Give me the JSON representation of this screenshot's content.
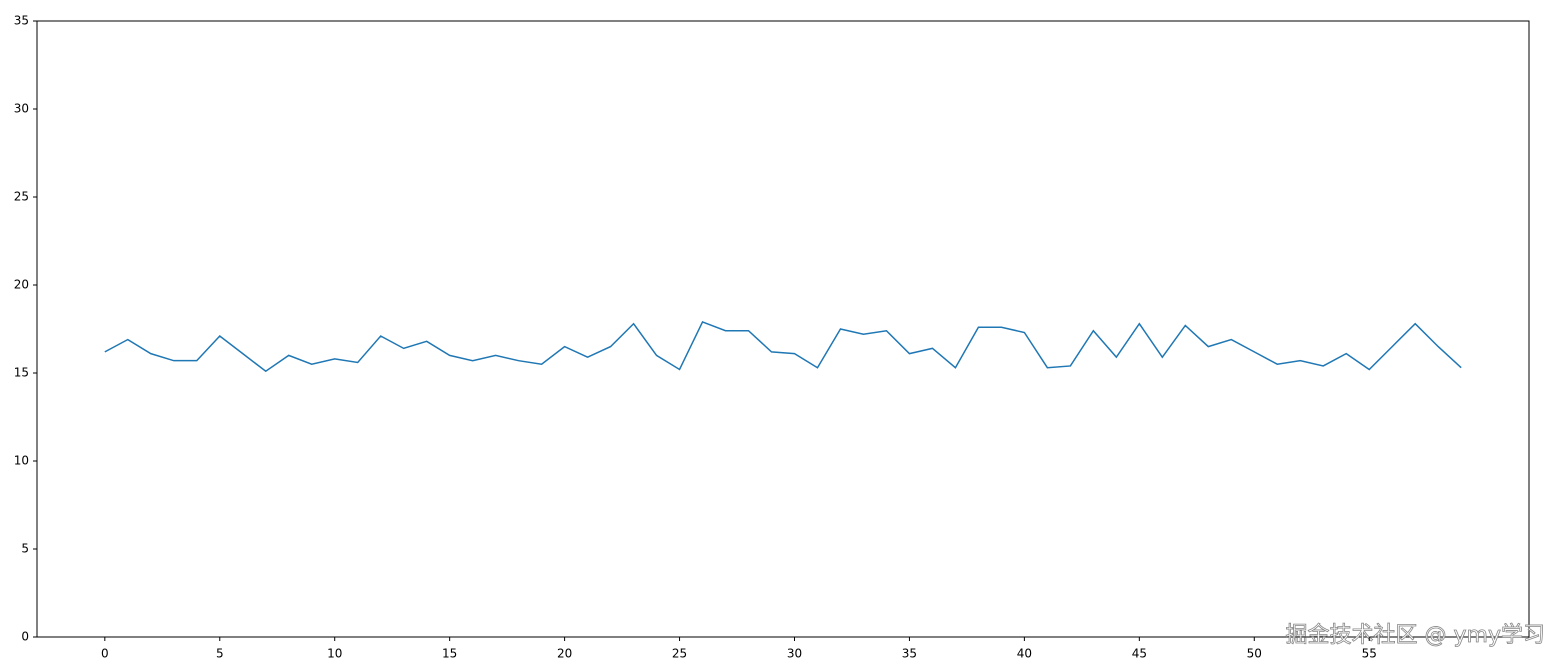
{
  "chart_data": {
    "type": "line",
    "x": [
      0,
      1,
      2,
      3,
      4,
      5,
      6,
      7,
      8,
      9,
      10,
      11,
      12,
      13,
      14,
      15,
      16,
      17,
      18,
      19,
      20,
      21,
      22,
      23,
      24,
      25,
      26,
      27,
      28,
      29,
      30,
      31,
      32,
      33,
      34,
      35,
      36,
      37,
      38,
      39,
      40,
      41,
      42,
      43,
      44,
      45,
      46,
      47,
      48,
      49,
      50,
      51,
      52,
      53,
      54,
      55,
      56,
      57,
      58,
      59
    ],
    "series": [
      {
        "color": "#1f77b4",
        "values": [
          16.2,
          16.9,
          16.1,
          15.7,
          15.7,
          17.1,
          16.1,
          15.1,
          16.0,
          15.5,
          15.8,
          15.6,
          17.1,
          16.4,
          16.8,
          16.0,
          15.7,
          16.0,
          15.7,
          15.5,
          16.5,
          15.9,
          16.5,
          17.8,
          16.0,
          15.2,
          17.9,
          17.4,
          17.4,
          16.2,
          16.1,
          15.3,
          17.5,
          17.2,
          17.4,
          16.1,
          16.4,
          15.3,
          17.6,
          17.6,
          17.3,
          15.3,
          15.4,
          17.4,
          15.9,
          17.8,
          15.9,
          17.7,
          16.5,
          16.9,
          16.2,
          15.5,
          15.7,
          15.4,
          16.1,
          15.2,
          16.5,
          17.8,
          16.5,
          15.3
        ]
      }
    ],
    "xlim": [
      -2.95,
      61.95
    ],
    "xticks": [
      0,
      5,
      10,
      15,
      20,
      25,
      30,
      35,
      40,
      45,
      50,
      55
    ],
    "ylim": [
      0,
      35
    ],
    "yticks": [
      0,
      5,
      10,
      15,
      20,
      25,
      30,
      35
    ],
    "watermark": "掘金技术社区 @ ymy学习"
  }
}
